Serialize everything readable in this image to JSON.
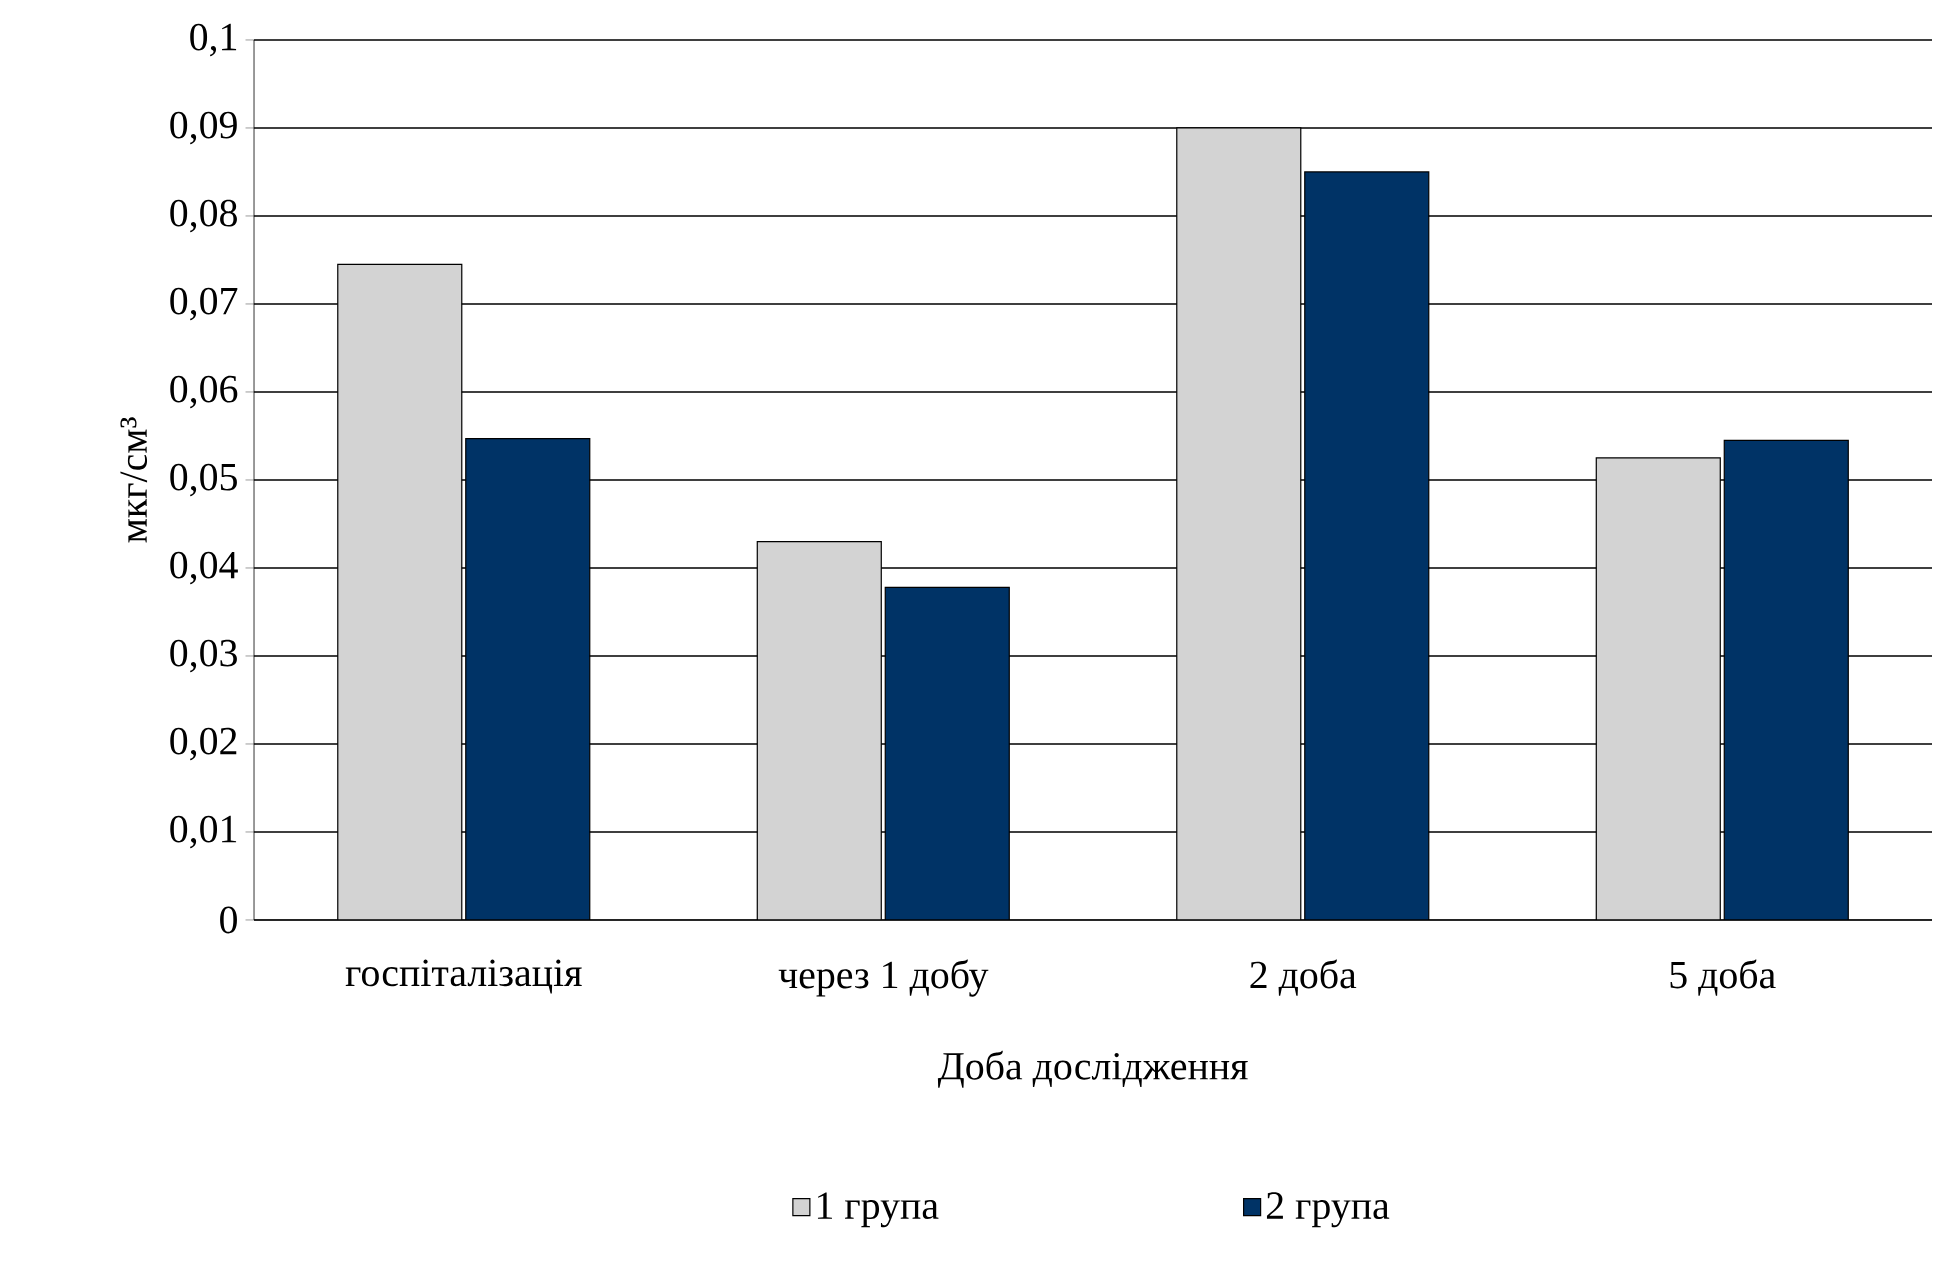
{
  "chart_data": {
    "type": "bar",
    "xlabel": "Доба дослідження",
    "ylabel": "мкг/см³",
    "categories": [
      "госпіталізація",
      "через 1 добу",
      "2 доба",
      "5 доба"
    ],
    "series": [
      {
        "name": "1 група",
        "color": "#d3d3d3",
        "values": [
          0.0745,
          0.043,
          0.09,
          0.0525
        ]
      },
      {
        "name": "2 група",
        "color": "#003366",
        "values": [
          0.0547,
          0.0378,
          0.085,
          0.0545
        ]
      }
    ],
    "ylim": [
      0,
      0.1
    ],
    "yticks": [
      0,
      {
        "value": 0.01,
        "label": "0,01"
      },
      {
        "value": 0.02,
        "label": "0,02"
      },
      {
        "value": 0.03,
        "label": "0,03"
      },
      {
        "value": 0.04,
        "label": "0,04"
      },
      {
        "value": 0.05,
        "label": "0,05"
      },
      {
        "value": 0.06,
        "label": "0,06"
      },
      {
        "value": 0.07,
        "label": "0,07"
      },
      {
        "value": 0.08,
        "label": "0,08"
      },
      {
        "value": 0.09,
        "label": "0,09"
      },
      {
        "value": 0.1,
        "label": "0,1"
      }
    ],
    "grid": "y",
    "legend": "bottom"
  }
}
